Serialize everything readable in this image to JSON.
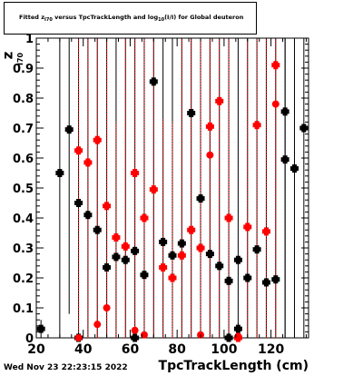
{
  "header": {
    "title_prefix": "Fitted  z",
    "title_sub1": "I70",
    "title_mid": "  versus  TpcTrackLength and log",
    "title_sub2": "10",
    "title_suffix": "(I/I) for Global deuteron"
  },
  "axes": {
    "ylabel": "z",
    "ylabel_sub": "I70",
    "xlabel": "TpcTrackLength (cm)"
  },
  "footer": {
    "timestamp": "Wed Nov 23 22:23:15 2022"
  },
  "chart_data": {
    "type": "scatter",
    "title": "Fitted z_I70 versus TpcTrackLength and log10(I/I) for Global deuteron",
    "xlabel": "TpcTrackLength (cm)",
    "ylabel": "z_I70",
    "xlim": [
      20,
      136
    ],
    "ylim": [
      0,
      1
    ],
    "x_ticks": [
      20,
      40,
      60,
      80,
      100,
      120
    ],
    "y_ticks": [
      0,
      0.1,
      0.2,
      0.3,
      0.4,
      0.5,
      0.6,
      0.7,
      0.8,
      0.9,
      1
    ],
    "y_tick_labels": [
      "0",
      "0.1",
      "0.2",
      "0.3",
      "0.4",
      "0.5",
      "0.6",
      "0.7",
      "0.8",
      "0.9",
      "1"
    ],
    "grid": false,
    "colors": {
      "series_black": "#000000",
      "series_red": "#ff0000"
    },
    "series": [
      {
        "marker": "square",
        "color": "#000000",
        "points": [
          {
            "x": 22,
            "y": 0.03,
            "lo": 0.0,
            "hi": 0.06
          },
          {
            "x": 30,
            "y": 0.55,
            "lo": 0.0,
            "hi": 1.0
          },
          {
            "x": 34,
            "y": 0.695,
            "lo": 0.08,
            "hi": 1.0
          },
          {
            "x": 38,
            "y": 0.45,
            "lo": 0.0,
            "hi": 1.0
          },
          {
            "x": 38,
            "y": 0.0,
            "lo": 0.0,
            "hi": 0.02
          },
          {
            "x": 42,
            "y": 0.41,
            "lo": 0.0,
            "hi": 1.0
          },
          {
            "x": 46,
            "y": 0.36,
            "lo": 0.0,
            "hi": 1.0
          },
          {
            "x": 50,
            "y": 0.235,
            "lo": 0.0,
            "hi": 1.0
          },
          {
            "x": 54,
            "y": 0.27,
            "lo": 0.0,
            "hi": 1.0
          },
          {
            "x": 58,
            "y": 0.26,
            "lo": 0.0,
            "hi": 1.0
          },
          {
            "x": 62,
            "y": 0.29,
            "lo": 0.0,
            "hi": 1.0
          },
          {
            "x": 62,
            "y": 0.0,
            "lo": 0.0,
            "hi": 0.03
          },
          {
            "x": 66,
            "y": 0.21,
            "lo": 0.0,
            "hi": 1.0
          },
          {
            "x": 70,
            "y": 0.855,
            "lo": 0.0,
            "hi": 1.0
          },
          {
            "x": 74,
            "y": 0.32,
            "lo": 0.0,
            "hi": 1.0
          },
          {
            "x": 78,
            "y": 0.275,
            "lo": 0.0,
            "hi": 1.0
          },
          {
            "x": 82,
            "y": 0.315,
            "lo": 0.0,
            "hi": 1.0
          },
          {
            "x": 86,
            "y": 0.75,
            "lo": 0.0,
            "hi": 1.0
          },
          {
            "x": 90,
            "y": 0.465,
            "lo": 0.0,
            "hi": 1.0
          },
          {
            "x": 94,
            "y": 0.28,
            "lo": 0.0,
            "hi": 1.0
          },
          {
            "x": 98,
            "y": 0.24,
            "lo": 0.0,
            "hi": 1.0
          },
          {
            "x": 102,
            "y": 0.19,
            "lo": 0.0,
            "hi": 1.0
          },
          {
            "x": 102,
            "y": 0.0,
            "lo": 0.0,
            "hi": 0.02
          },
          {
            "x": 106,
            "y": 0.26,
            "lo": 0.0,
            "hi": 1.0
          },
          {
            "x": 106,
            "y": 0.03,
            "lo": 0.0,
            "hi": 0.05
          },
          {
            "x": 110,
            "y": 0.2,
            "lo": 0.0,
            "hi": 1.0
          },
          {
            "x": 114,
            "y": 0.295,
            "lo": 0.0,
            "hi": 1.0
          },
          {
            "x": 118,
            "y": 0.185,
            "lo": 0.0,
            "hi": 1.0
          },
          {
            "x": 122,
            "y": 0.195,
            "lo": 0.0,
            "hi": 1.0
          },
          {
            "x": 126,
            "y": 0.755,
            "lo": 0.0,
            "hi": 1.0
          },
          {
            "x": 126,
            "y": 0.595,
            "lo": 0.0,
            "hi": 1.0
          },
          {
            "x": 130,
            "y": 0.565,
            "lo": 0.0,
            "hi": 1.0
          },
          {
            "x": 134,
            "y": 0.7,
            "lo": 0.0,
            "hi": 1.0
          }
        ]
      },
      {
        "marker": "square-red",
        "color": "#ff0000",
        "points": [
          {
            "x": 38,
            "y": 0.625,
            "lo": 0.0,
            "hi": 1.0
          },
          {
            "x": 42,
            "y": 0.585,
            "lo": 0.0,
            "hi": 1.0
          },
          {
            "x": 46,
            "y": 0.66,
            "lo": 0.0,
            "hi": 1.0
          },
          {
            "x": 50,
            "y": 0.44,
            "lo": 0.0,
            "hi": 1.0
          },
          {
            "x": 54,
            "y": 0.335,
            "lo": 0.0,
            "hi": 0.72
          },
          {
            "x": 58,
            "y": 0.305,
            "lo": 0.0,
            "hi": 1.0
          },
          {
            "x": 62,
            "y": 0.55,
            "lo": 0.0,
            "hi": 1.0
          },
          {
            "x": 66,
            "y": 0.4,
            "lo": 0.0,
            "hi": 1.0
          },
          {
            "x": 70,
            "y": 0.495,
            "lo": 0.0,
            "hi": 1.0
          },
          {
            "x": 74,
            "y": 0.235,
            "lo": 0.0,
            "hi": 0.73
          },
          {
            "x": 78,
            "y": 0.2,
            "lo": 0.0,
            "hi": 0.72
          },
          {
            "x": 82,
            "y": 0.275,
            "lo": 0.0,
            "hi": 1.0
          },
          {
            "x": 86,
            "y": 0.36,
            "lo": 0.0,
            "hi": 1.0
          },
          {
            "x": 90,
            "y": 0.3,
            "lo": 0.0,
            "hi": 1.0
          },
          {
            "x": 94,
            "y": 0.705,
            "lo": 0.0,
            "hi": 1.0
          },
          {
            "x": 98,
            "y": 0.79,
            "lo": 0.0,
            "hi": 1.0
          },
          {
            "x": 102,
            "y": 0.4,
            "lo": 0.0,
            "hi": 1.0
          },
          {
            "x": 106,
            "y": 0.0,
            "lo": 0.0,
            "hi": 0.02
          },
          {
            "x": 110,
            "y": 0.37,
            "lo": 0.0,
            "hi": 1.0
          },
          {
            "x": 114,
            "y": 0.71,
            "lo": 0.0,
            "hi": 1.0
          },
          {
            "x": 118,
            "y": 0.355,
            "lo": 0.0,
            "hi": 1.0
          },
          {
            "x": 122,
            "y": 0.91,
            "lo": 0.0,
            "hi": 1.0
          }
        ]
      },
      {
        "marker": "circle-red",
        "color": "#ff0000",
        "points": [
          {
            "x": 38,
            "y": 0.0,
            "lo": 0.0,
            "hi": 0.02
          },
          {
            "x": 46,
            "y": 0.045,
            "lo": 0.0,
            "hi": 0.08
          },
          {
            "x": 50,
            "y": 0.1,
            "lo": 0.0,
            "hi": 0.16
          },
          {
            "x": 62,
            "y": 0.025,
            "lo": 0.0,
            "hi": 0.05
          },
          {
            "x": 66,
            "y": 0.01,
            "lo": 0.0,
            "hi": 0.03
          },
          {
            "x": 90,
            "y": 0.01,
            "lo": 0.0,
            "hi": 0.03
          },
          {
            "x": 94,
            "y": 0.61,
            "lo": 0.0,
            "hi": 1.0
          },
          {
            "x": 106,
            "y": 0.005,
            "lo": 0.0,
            "hi": 0.02
          },
          {
            "x": 122,
            "y": 0.78,
            "lo": 0.0,
            "hi": 1.0
          }
        ]
      }
    ]
  }
}
